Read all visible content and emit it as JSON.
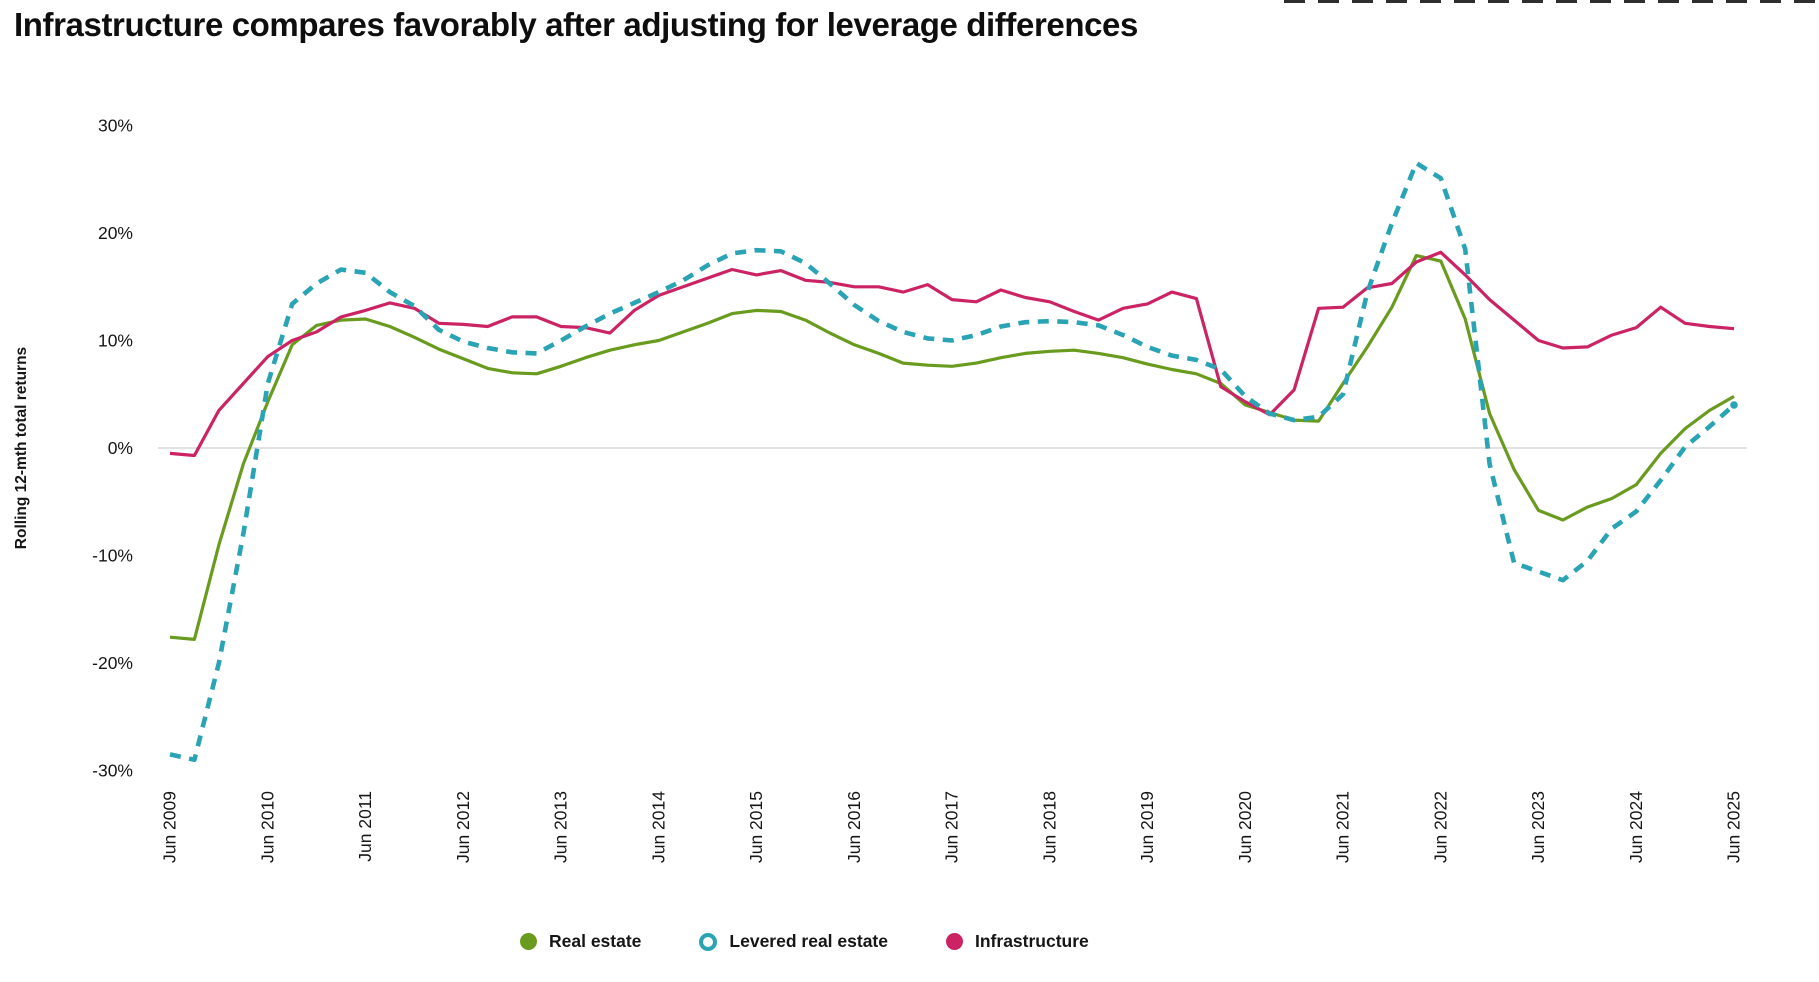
{
  "page": {
    "background": "#ffffff"
  },
  "decor": {
    "top_right_strip_color": "#2e2e2e"
  },
  "colors": {
    "title_text": "#0e0e0e",
    "axis_text": "#161616",
    "zero_line": "#d9d9d9",
    "real_estate": "#699b1f",
    "levered_real_estate": "#2aa4b4",
    "infrastructure": "#cb2363"
  },
  "chart_data": {
    "type": "line",
    "title": "Infrastructure compares favorably after adjusting for leverage differences",
    "ylabel": "Rolling 12-mth total returns",
    "xlabel": "",
    "ylim": [
      -30,
      30
    ],
    "yticks": [
      30,
      20,
      10,
      0,
      -10,
      -20,
      -30
    ],
    "ytick_labels": [
      "30%",
      "20%",
      "10%",
      "0%",
      "-10%",
      "-20%",
      "-30%"
    ],
    "xtick_labels": [
      "Jun 2009",
      "Jun 2010",
      "Jun 2011",
      "Jun 2012",
      "Jun 2013",
      "Jun 2014",
      "Jun 2015",
      "Jun 2016",
      "Jun 2017",
      "Jun 2018",
      "Jun 2019",
      "Jun 2020",
      "Jun 2021",
      "Jun 2022",
      "Jun 2023",
      "Jun 2024",
      "Jun 2025"
    ],
    "x_frequency": "quarterly",
    "x_start": "Jun 2009",
    "x_end": "Jun 2025",
    "grid": "zero-line-only",
    "legend_position": "bottom-center",
    "series": [
      {
        "name": "Real estate",
        "color": "#699b1f",
        "line_style": "solid",
        "legend_marker": "filled-circle",
        "values": [
          -17.6,
          -17.8,
          -9.0,
          -1.5,
          4.3,
          9.6,
          11.4,
          11.9,
          12.0,
          11.3,
          10.3,
          9.2,
          8.3,
          7.4,
          7.0,
          6.9,
          7.6,
          8.4,
          9.1,
          9.6,
          10.0,
          10.8,
          11.6,
          12.5,
          12.8,
          12.7,
          11.9,
          10.7,
          9.6,
          8.8,
          7.9,
          7.7,
          7.6,
          7.9,
          8.4,
          8.8,
          9.0,
          9.1,
          8.8,
          8.4,
          7.8,
          7.3,
          6.9,
          6.0,
          4.0,
          3.3,
          2.6,
          2.5,
          6.0,
          9.4,
          13.1,
          17.9,
          17.4,
          12.0,
          3.2,
          -2.0,
          -5.8,
          -6.7,
          -5.5,
          -4.7,
          -3.4,
          -0.5,
          1.8,
          3.5,
          4.8
        ]
      },
      {
        "name": "Levered real estate",
        "color": "#2aa4b4",
        "line_style": "dashed",
        "legend_marker": "open-circle",
        "values": [
          -28.5,
          -29.0,
          -20.0,
          -8.0,
          6.0,
          13.4,
          15.3,
          16.6,
          16.3,
          14.5,
          13.2,
          11.0,
          9.9,
          9.3,
          8.9,
          8.8,
          10.0,
          11.3,
          12.5,
          13.5,
          14.5,
          15.6,
          17.0,
          18.1,
          18.4,
          18.3,
          17.2,
          15.3,
          13.3,
          11.8,
          10.8,
          10.2,
          10.0,
          10.5,
          11.3,
          11.7,
          11.8,
          11.7,
          11.4,
          10.5,
          9.4,
          8.6,
          8.2,
          7.3,
          4.8,
          3.2,
          2.6,
          2.9,
          5.0,
          14.5,
          20.9,
          26.5,
          25.1,
          18.5,
          -1.5,
          -10.7,
          -11.5,
          -12.3,
          -10.5,
          -7.5,
          -5.9,
          -3.0,
          0.1,
          2.0,
          4.0
        ]
      },
      {
        "name": "Infrastructure",
        "color": "#cb2363",
        "line_style": "solid",
        "legend_marker": "filled-circle",
        "values": [
          -0.5,
          -0.7,
          3.5,
          6.0,
          8.5,
          10.0,
          10.8,
          12.2,
          12.8,
          13.5,
          13.0,
          11.6,
          11.5,
          11.3,
          12.2,
          12.2,
          11.3,
          11.2,
          10.7,
          12.8,
          14.2,
          15.0,
          15.8,
          16.6,
          16.1,
          16.5,
          15.6,
          15.4,
          15.0,
          15.0,
          14.5,
          15.2,
          13.8,
          13.6,
          14.7,
          14.0,
          13.6,
          12.7,
          11.9,
          13.0,
          13.4,
          14.5,
          13.9,
          5.7,
          4.3,
          3.1,
          5.4,
          13.0,
          13.1,
          14.9,
          15.3,
          17.3,
          18.2,
          16.1,
          13.8,
          11.9,
          10.0,
          9.3,
          9.4,
          10.5,
          11.2,
          13.1,
          11.6,
          11.3,
          11.1
        ]
      }
    ]
  }
}
